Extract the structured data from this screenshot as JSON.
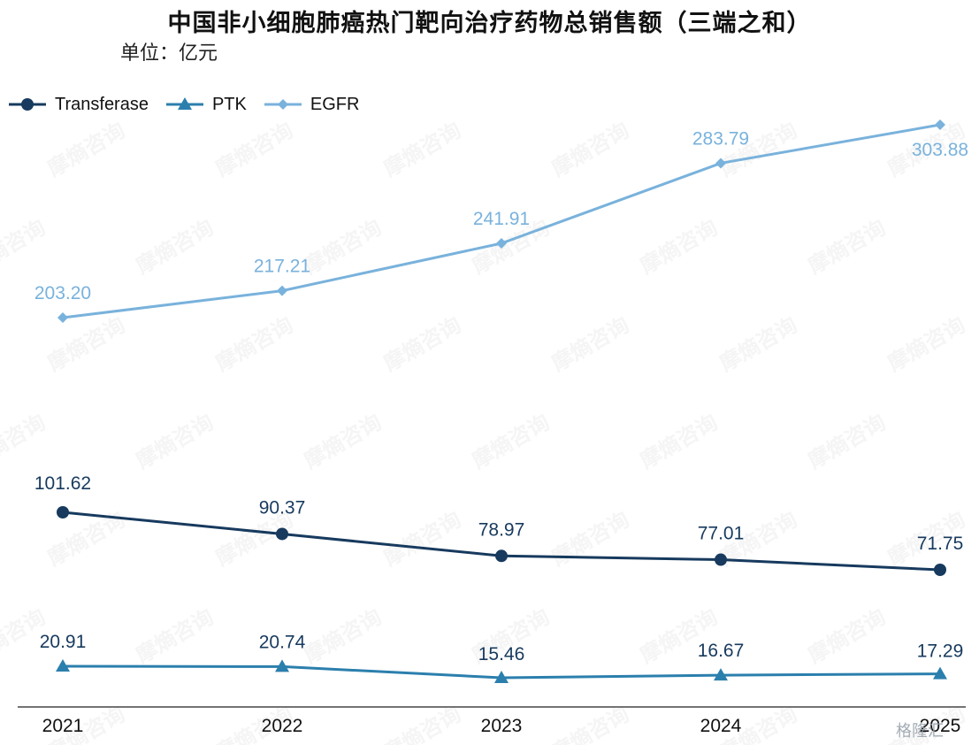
{
  "title": "中国非小细胞肺癌热门靶向治疗药物总销售额（三端之和）",
  "subtitle": "单位：亿元",
  "watermark_text": "摩熵咨询",
  "corner_logo_text": "格隆汇",
  "chart_data": {
    "type": "line",
    "categories": [
      "2021",
      "2022",
      "2023",
      "2024",
      "2025"
    ],
    "series": [
      {
        "name": "Transferase",
        "marker": "circle",
        "color": "#173a5e",
        "values": [
          101.62,
          90.37,
          78.97,
          77.01,
          71.75
        ],
        "labels": [
          "101.62",
          "90.37",
          "78.97",
          "77.01",
          "71.75"
        ]
      },
      {
        "name": "PTK",
        "marker": "triangle",
        "color": "#2b7fad",
        "values": [
          20.91,
          20.74,
          15.46,
          16.67,
          17.29
        ],
        "labels": [
          "20.91",
          "20.74",
          "15.46",
          "16.67",
          "17.29"
        ]
      },
      {
        "name": "EGFR",
        "marker": "diamond",
        "color": "#79b2dc",
        "values": [
          203.2,
          217.21,
          241.91,
          283.79,
          303.88
        ],
        "labels": [
          "203.20",
          "217.21",
          "241.91",
          "283.79",
          "303.88"
        ]
      }
    ],
    "xlabel": "",
    "ylabel": "",
    "grid": false,
    "legend": "top-left"
  }
}
